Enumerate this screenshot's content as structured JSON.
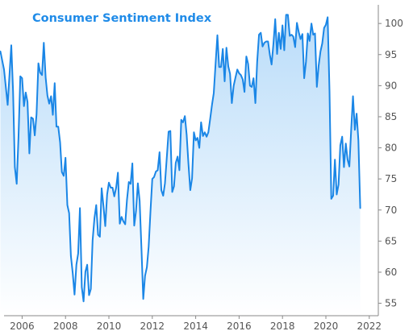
{
  "chart_data": {
    "type": "area",
    "title": "Consumer Sentiment Index",
    "xlabel": "",
    "ylabel": "",
    "x_ticks": [
      "2006",
      "2008",
      "2010",
      "2012",
      "2014",
      "2016",
      "2018",
      "2020",
      "2022"
    ],
    "y_ticks": [
      55,
      60,
      65,
      70,
      75,
      80,
      85,
      90,
      95,
      100
    ],
    "xlim": [
      "2005-03",
      "2022-06"
    ],
    "ylim": [
      53,
      103
    ],
    "y_axis_side": "right",
    "grid": false,
    "legend": "none",
    "colors": {
      "line": "#1a86e6",
      "fill_top": "#b9dcf9",
      "fill_bottom": "#ffffff",
      "axis": "#888888"
    },
    "series": [
      {
        "x": [
          "2005-01",
          "2005-03",
          "2005-05",
          "2005-07",
          "2005-08",
          "2005-09",
          "2005-10",
          "2005-11",
          "2005-12",
          "2006-01",
          "2006-02",
          "2006-03",
          "2006-04",
          "2006-05",
          "2006-06",
          "2006-07",
          "2006-08",
          "2006-09",
          "2006-10",
          "2006-11",
          "2006-12",
          "2007-01",
          "2007-02",
          "2007-03",
          "2007-04",
          "2007-05",
          "2007-06",
          "2007-07",
          "2007-08",
          "2007-09",
          "2007-10",
          "2007-11",
          "2007-12",
          "2008-01",
          "2008-02",
          "2008-03",
          "2008-04",
          "2008-05",
          "2008-06",
          "2008-07",
          "2008-08",
          "2008-09",
          "2008-10",
          "2008-11",
          "2008-12",
          "2009-01",
          "2009-02",
          "2009-03",
          "2009-04",
          "2009-05",
          "2009-06",
          "2009-07",
          "2009-08",
          "2009-09",
          "2009-10",
          "2009-11",
          "2009-12",
          "2010-01",
          "2010-02",
          "2010-03",
          "2010-04",
          "2010-05",
          "2010-06",
          "2010-07",
          "2010-08",
          "2010-09",
          "2010-10",
          "2010-11",
          "2010-12",
          "2011-01",
          "2011-02",
          "2011-03",
          "2011-04",
          "2011-05",
          "2011-06",
          "2011-07",
          "2011-08",
          "2011-09",
          "2011-10",
          "2011-11",
          "2011-12",
          "2012-01",
          "2012-02",
          "2012-03",
          "2012-04",
          "2012-05",
          "2012-06",
          "2012-07",
          "2012-08",
          "2012-09",
          "2012-10",
          "2012-11",
          "2012-12",
          "2013-01",
          "2013-02",
          "2013-03",
          "2013-04",
          "2013-05",
          "2013-06",
          "2013-07",
          "2013-08",
          "2013-09",
          "2013-10",
          "2013-11",
          "2013-12",
          "2014-01",
          "2014-02",
          "2014-03",
          "2014-04",
          "2014-05",
          "2014-06",
          "2014-07",
          "2014-08",
          "2014-09",
          "2014-10",
          "2014-11",
          "2014-12",
          "2015-01",
          "2015-02",
          "2015-03",
          "2015-04",
          "2015-05",
          "2015-06",
          "2015-07",
          "2015-08",
          "2015-09",
          "2015-10",
          "2015-11",
          "2015-12",
          "2016-01",
          "2016-02",
          "2016-03",
          "2016-04",
          "2016-05",
          "2016-06",
          "2016-07",
          "2016-08",
          "2016-09",
          "2016-10",
          "2016-11",
          "2016-12",
          "2017-01",
          "2017-02",
          "2017-03",
          "2017-04",
          "2017-05",
          "2017-06",
          "2017-07",
          "2017-08",
          "2017-09",
          "2017-10",
          "2017-11",
          "2017-12",
          "2018-01",
          "2018-02",
          "2018-03",
          "2018-04",
          "2018-05",
          "2018-06",
          "2018-07",
          "2018-08",
          "2018-09",
          "2018-10",
          "2018-11",
          "2018-12",
          "2019-01",
          "2019-02",
          "2019-03",
          "2019-04",
          "2019-05",
          "2019-06",
          "2019-07",
          "2019-08",
          "2019-09",
          "2019-10",
          "2019-11",
          "2019-12",
          "2020-01",
          "2020-02",
          "2020-03",
          "2020-04",
          "2020-05",
          "2020-06",
          "2020-07",
          "2020-08",
          "2020-09",
          "2020-10",
          "2020-11",
          "2020-12",
          "2021-01",
          "2021-02",
          "2021-03",
          "2021-04",
          "2021-05",
          "2021-06",
          "2021-07",
          "2021-08"
        ],
        "values": [
          95.5,
          92.6,
          86.9,
          96.5,
          89.1,
          76.9,
          74.2,
          81.6,
          91.5,
          91.2,
          86.7,
          88.9,
          87.4,
          79.1,
          84.9,
          84.7,
          82.0,
          85.4,
          93.6,
          92.1,
          91.7,
          96.9,
          91.3,
          88.4,
          87.1,
          88.3,
          85.3,
          90.4,
          83.4,
          83.4,
          80.9,
          76.1,
          75.5,
          78.4,
          70.8,
          69.5,
          62.6,
          59.8,
          56.4,
          61.2,
          63.0,
          70.3,
          57.6,
          55.3,
          60.1,
          61.2,
          56.3,
          57.3,
          65.1,
          68.7,
          70.8,
          66.0,
          65.7,
          73.5,
          70.6,
          67.4,
          72.5,
          74.4,
          73.6,
          73.6,
          72.2,
          73.6,
          76.0,
          67.8,
          68.9,
          68.2,
          67.7,
          71.6,
          74.5,
          74.2,
          77.5,
          67.5,
          69.8,
          74.3,
          71.5,
          63.7,
          55.7,
          59.4,
          60.8,
          64.1,
          69.9,
          75.0,
          75.3,
          76.2,
          76.4,
          79.3,
          73.2,
          72.3,
          74.3,
          78.3,
          82.6,
          82.7,
          72.9,
          73.8,
          77.6,
          78.6,
          76.4,
          84.5,
          84.1,
          85.1,
          82.1,
          77.5,
          73.2,
          75.1,
          82.5,
          81.2,
          81.6,
          80.0,
          84.1,
          81.9,
          82.5,
          81.8,
          82.5,
          84.6,
          86.9,
          88.8,
          93.6,
          98.1,
          93.0,
          93.0,
          95.9,
          90.7,
          96.1,
          93.1,
          91.9,
          87.2,
          90.0,
          91.3,
          92.6,
          92.0,
          91.7,
          91.0,
          89.0,
          94.7,
          93.5,
          90.0,
          89.8,
          91.2,
          87.2,
          93.8,
          98.2,
          98.5,
          96.3,
          96.9,
          97.1,
          97.1,
          95.0,
          93.4,
          96.8,
          100.7,
          95.1,
          98.5,
          95.9,
          99.7,
          95.7,
          101.4,
          101.4,
          98.0,
          98.2,
          97.9,
          96.2,
          100.1,
          98.6,
          97.5,
          98.3,
          91.2,
          93.8,
          98.4,
          97.2,
          100.0,
          98.2,
          98.4,
          89.8,
          93.2,
          95.5,
          96.8,
          99.3,
          99.8,
          101.0,
          89.1,
          71.8,
          72.3,
          78.1,
          72.5,
          74.1,
          80.4,
          81.8,
          76.9,
          80.7,
          78.1,
          77.0,
          83.0,
          88.3,
          82.9,
          85.5,
          81.2,
          70.3
        ]
      }
    ]
  }
}
